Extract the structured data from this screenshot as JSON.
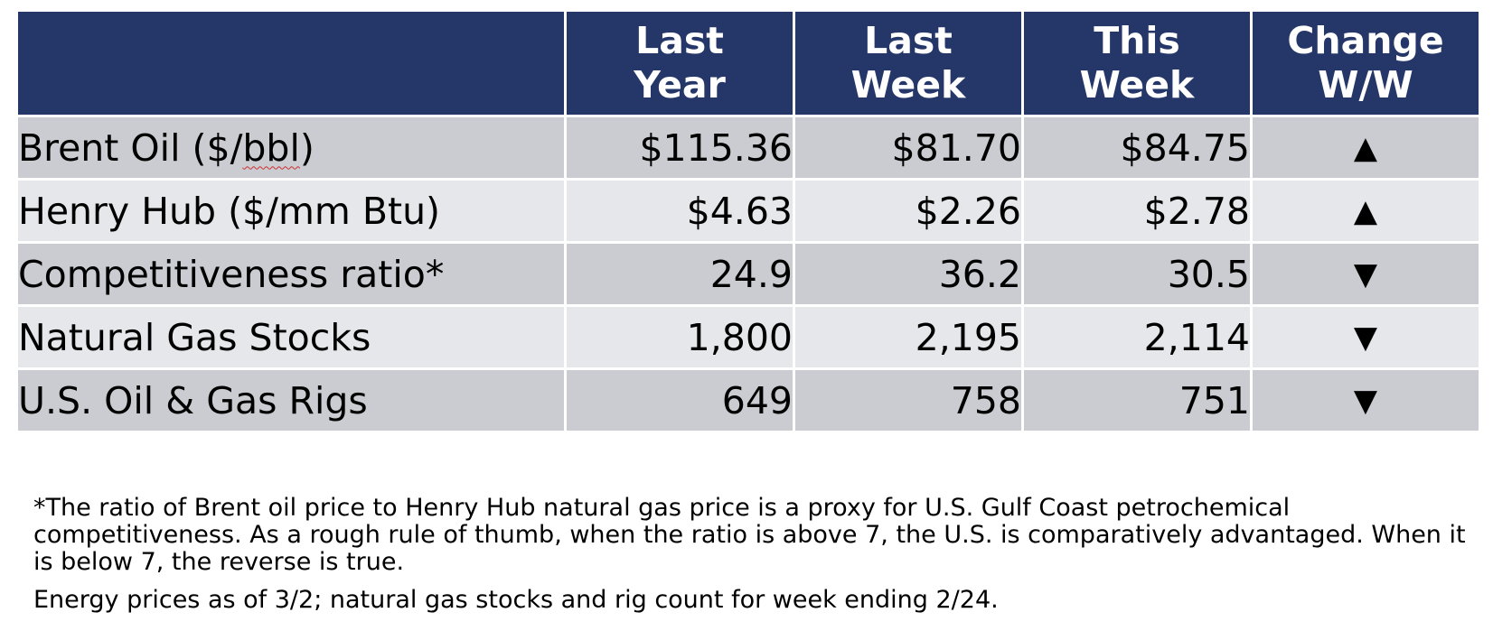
{
  "table": {
    "columns": [
      "",
      "Last\nYear",
      "Last\nWeek",
      "This\nWeek",
      "Change\nW/W"
    ],
    "header": {
      "last_year": [
        "Last",
        "Year"
      ],
      "last_week": [
        "Last",
        "Week"
      ],
      "this_week": [
        "This",
        "Week"
      ],
      "change": [
        "Change",
        "W/W"
      ]
    },
    "rows": [
      {
        "label_pre": "Brent Oil ($/",
        "label_flag": "bbl",
        "label_post": ")",
        "last_year": "$115.36",
        "last_week": "$81.70",
        "this_week": "$84.75",
        "change": "▲",
        "change_icon": "triangle-up-icon"
      },
      {
        "label": "Henry Hub ($/mm Btu)",
        "last_year": "$4.63",
        "last_week": "$2.26",
        "this_week": "$2.78",
        "change": "▲",
        "change_icon": "triangle-up-icon"
      },
      {
        "label": "Competitiveness ratio*",
        "last_year": "24.9",
        "last_week": "36.2",
        "this_week": "30.5",
        "change": "▼",
        "change_icon": "triangle-down-icon"
      },
      {
        "label": "Natural Gas Stocks",
        "last_year": "1,800",
        "last_week": "2,195",
        "this_week": "2,114",
        "change": "▼",
        "change_icon": "triangle-down-icon"
      },
      {
        "label": "U.S. Oil & Gas Rigs",
        "last_year": "649",
        "last_week": "758",
        "this_week": "751",
        "change": "▼",
        "change_icon": "triangle-down-icon"
      }
    ]
  },
  "notes": {
    "footnote": "*The ratio of Brent oil price to Henry Hub natural gas price is a proxy for U.S. Gulf Coast petrochemical competitiveness. As a rough rule of thumb, when the ratio is above 7, the U.S. is comparatively advantaged. When it is below 7, the reverse is true.",
    "asof": "Energy prices as of 3/2; natural gas stocks and rig count for week ending 2/24."
  },
  "colors": {
    "header_bg": "#253769",
    "header_text": "#ffffff",
    "row_dark": "#cbccd1",
    "row_light": "#e6e7ea",
    "spellcheck_underline": "#d03030"
  }
}
